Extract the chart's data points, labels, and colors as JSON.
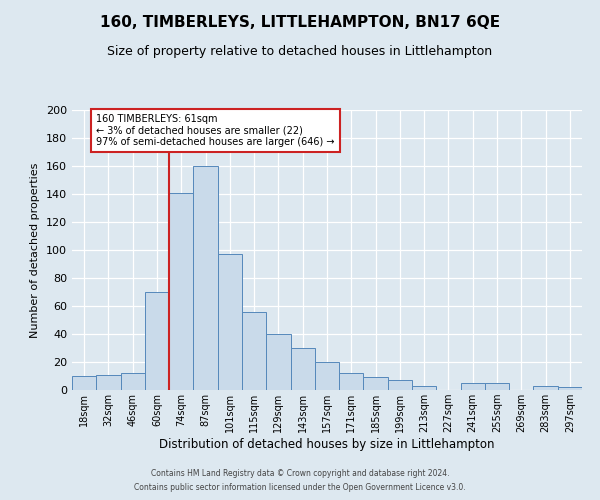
{
  "title_line1": "160, TIMBERLEYS, LITTLEHAMPTON, BN17 6QE",
  "title_line2": "Size of property relative to detached houses in Littlehampton",
  "xlabel": "Distribution of detached houses by size in Littlehampton",
  "ylabel": "Number of detached properties",
  "bin_labels": [
    "18sqm",
    "32sqm",
    "46sqm",
    "60sqm",
    "74sqm",
    "87sqm",
    "101sqm",
    "115sqm",
    "129sqm",
    "143sqm",
    "157sqm",
    "171sqm",
    "185sqm",
    "199sqm",
    "213sqm",
    "227sqm",
    "241sqm",
    "255sqm",
    "269sqm",
    "283sqm",
    "297sqm"
  ],
  "bar_heights": [
    10,
    11,
    12,
    70,
    141,
    160,
    97,
    56,
    40,
    30,
    20,
    12,
    9,
    7,
    3,
    0,
    5,
    5,
    0,
    3,
    2
  ],
  "bar_color": "#c9daea",
  "bar_edge_color": "#5588bb",
  "vline_x": 3.5,
  "vline_color": "#cc2222",
  "annotation_title": "160 TIMBERLEYS: 61sqm",
  "annotation_line1": "← 3% of detached houses are smaller (22)",
  "annotation_line2": "97% of semi-detached houses are larger (646) →",
  "annotation_box_color": "#ffffff",
  "annotation_box_edge": "#cc2222",
  "footer_line1": "Contains HM Land Registry data © Crown copyright and database right 2024.",
  "footer_line2": "Contains public sector information licensed under the Open Government Licence v3.0.",
  "ylim": [
    0,
    200
  ],
  "yticks": [
    0,
    20,
    40,
    60,
    80,
    100,
    120,
    140,
    160,
    180,
    200
  ],
  "background_color": "#dde8f0",
  "grid_color": "#ffffff",
  "title_fontsize": 11,
  "subtitle_fontsize": 9
}
